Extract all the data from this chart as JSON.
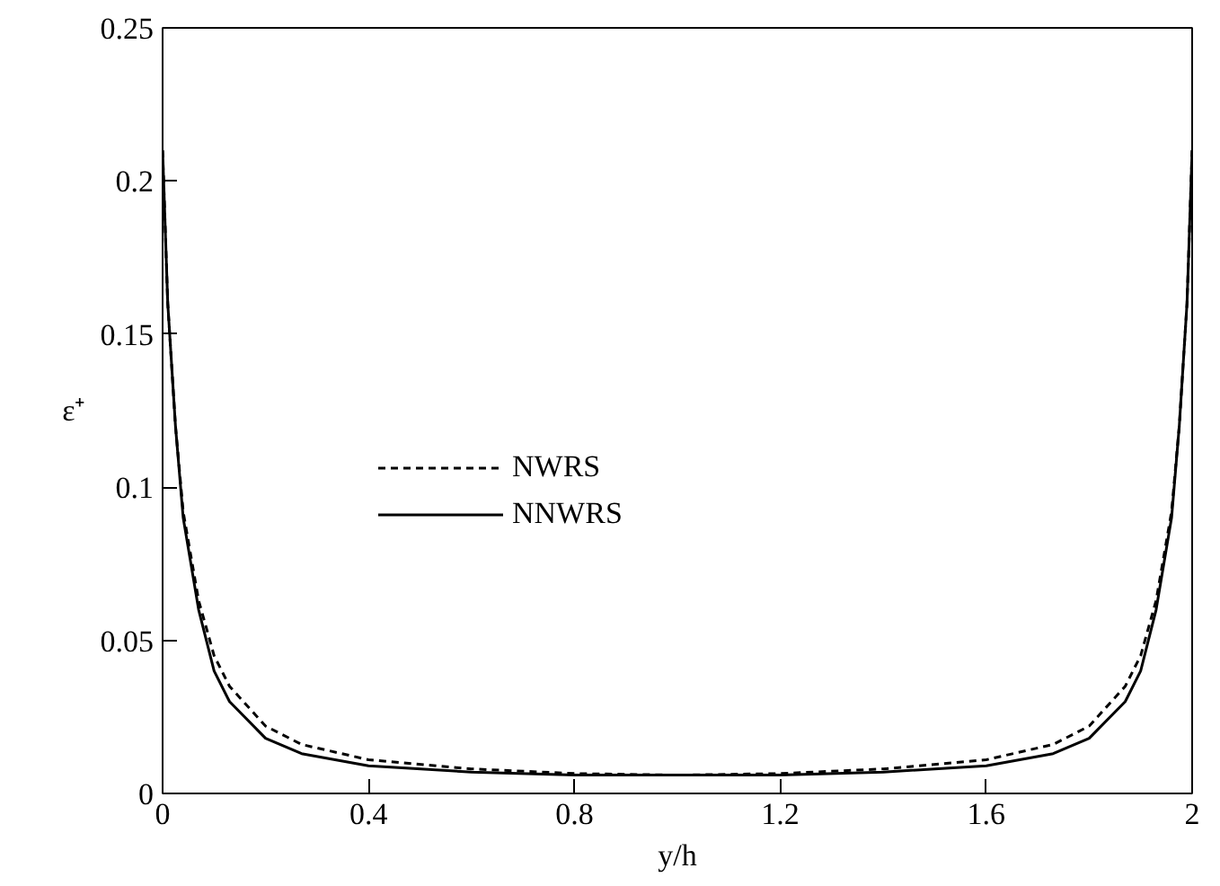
{
  "chart_data": {
    "type": "line",
    "xlabel": "y/h",
    "ylabel": "ε⁺",
    "x": [
      0,
      0.01,
      0.025,
      0.04,
      0.07,
      0.1,
      0.13,
      0.2,
      0.27,
      0.4,
      0.6,
      0.8,
      1.0,
      1.2,
      1.4,
      1.6,
      1.73,
      1.8,
      1.87,
      1.9,
      1.93,
      1.96,
      1.975,
      1.99,
      2.0
    ],
    "series": [
      {
        "name": "NWRS",
        "color": "#000000",
        "line_style": "dashed",
        "values": [
          0.21,
          0.16,
          0.12,
          0.092,
          0.063,
          0.045,
          0.035,
          0.022,
          0.016,
          0.011,
          0.008,
          0.0065,
          0.006,
          0.0065,
          0.008,
          0.011,
          0.016,
          0.022,
          0.035,
          0.045,
          0.063,
          0.092,
          0.12,
          0.16,
          0.21
        ]
      },
      {
        "name": "NNWRS",
        "color": "#000000",
        "line_style": "solid",
        "values": [
          0.21,
          0.16,
          0.12,
          0.09,
          0.06,
          0.04,
          0.03,
          0.018,
          0.013,
          0.009,
          0.007,
          0.006,
          0.006,
          0.006,
          0.007,
          0.009,
          0.013,
          0.018,
          0.03,
          0.04,
          0.06,
          0.09,
          0.12,
          0.16,
          0.21
        ]
      }
    ],
    "xlim": [
      0,
      2
    ],
    "ylim": [
      0,
      0.25
    ],
    "xticks": [
      0,
      0.4,
      0.8,
      1.2,
      1.6,
      2
    ],
    "yticks": [
      0,
      0.05,
      0.1,
      0.15,
      0.2,
      0.25
    ],
    "grid": false,
    "legend": "left",
    "marker": "none"
  }
}
